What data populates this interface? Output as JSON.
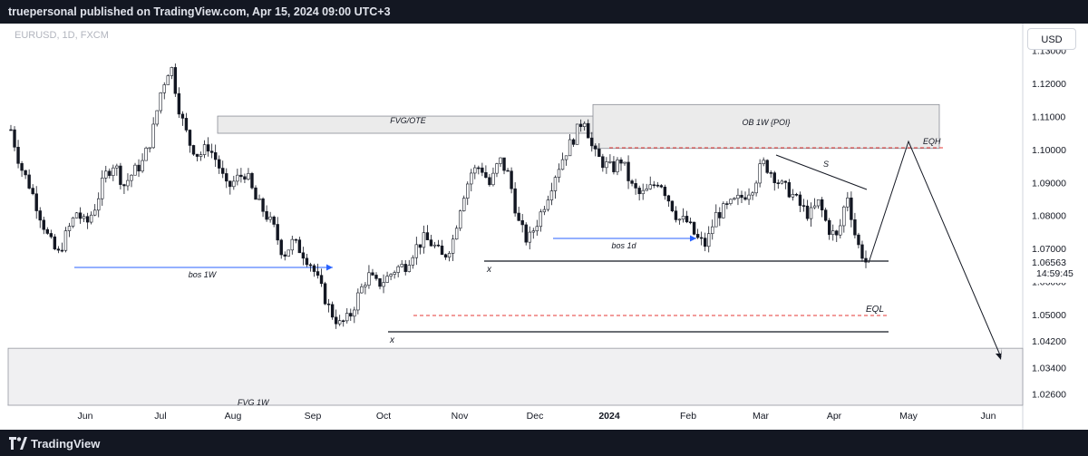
{
  "header": {
    "published_text": "truepersonal published on TradingView.com, Apr 15, 2024 09:00 UTC+3"
  },
  "symbol": {
    "label": "EURUSD, 1D, FXCM"
  },
  "currency_button": {
    "label": "USD"
  },
  "footer": {
    "logo_text": "TradingView"
  },
  "colors": {
    "background": "#ffffff",
    "frame": "#131722",
    "candle_up": "#1e2a20",
    "candle_down": "#000000",
    "box_fill": "#ebebeb",
    "bos_arrow": "#2962ff",
    "dashed_level": "#e53935",
    "last_price_bg": "#ffffff"
  },
  "chart_data": {
    "type": "candlestick",
    "title": "EURUSD, 1D, FXCM",
    "xlabel": "",
    "ylabel": "",
    "x_ticks": [
      "Jun",
      "Jul",
      "Aug",
      "Sep",
      "Oct",
      "Nov",
      "Dec",
      "2024",
      "Feb",
      "Mar",
      "Apr",
      "May",
      "Jun"
    ],
    "y_ticks": [
      "1.13000",
      "1.12000",
      "1.11000",
      "1.10000",
      "1.09000",
      "1.08000",
      "1.07000",
      "1.06000",
      "1.05000",
      "1.04200",
      "1.03400",
      "1.02600"
    ],
    "ylim": [
      1.023,
      1.137
    ],
    "last_price": {
      "value": "1.06563",
      "countdown": "14:59:45"
    },
    "series": [
      {
        "name": "EURUSD",
        "path_closes": [
          1.106,
          1.095,
          1.089,
          1.081,
          1.073,
          1.068,
          1.075,
          1.081,
          1.077,
          1.083,
          1.092,
          1.096,
          1.089,
          1.093,
          1.096,
          1.104,
          1.118,
          1.126,
          1.111,
          1.102,
          1.098,
          1.101,
          1.096,
          1.088,
          1.091,
          1.093,
          1.085,
          1.081,
          1.076,
          1.068,
          1.072,
          1.069,
          1.065,
          1.058,
          1.051,
          1.047,
          1.049,
          1.056,
          1.062,
          1.059,
          1.061,
          1.064,
          1.065,
          1.07,
          1.073,
          1.071,
          1.067,
          1.072,
          1.085,
          1.093,
          1.095,
          1.089,
          1.097,
          1.092,
          1.078,
          1.072,
          1.078,
          1.085,
          1.093,
          1.099,
          1.104,
          1.11,
          1.099,
          1.096,
          1.094,
          1.097,
          1.089,
          1.086,
          1.088,
          1.091,
          1.085,
          1.079,
          1.078,
          1.073,
          1.071,
          1.08,
          1.082,
          1.084,
          1.086,
          1.089,
          1.096,
          1.093,
          1.089,
          1.087,
          1.083,
          1.08,
          1.084,
          1.076,
          1.073,
          1.087,
          1.072,
          1.066
        ],
        "close_x_fraction_start": 0.0,
        "close_x_fraction_end": 1.0
      }
    ],
    "annotations": {
      "boxes": [
        {
          "label": "FVG/OTE",
          "x0": "Aug",
          "x1": "Dec",
          "y0": 1.1049,
          "y1": 1.1101
        },
        {
          "label": "OB 1W {POI}",
          "x0": "Dec",
          "x1": "May",
          "y0": 1.1003,
          "y1": 1.1136
        },
        {
          "label": "FVG 1W",
          "x0": "May 2023",
          "x1": "Jun 2024",
          "y0": 1.01,
          "y1": 1.0398
        }
      ],
      "arrows": [
        {
          "label": "bos 1W",
          "from": 1.0638,
          "to": 1.0638
        },
        {
          "label": "bos 1d",
          "from": 1.0732,
          "to": 1.0732
        }
      ],
      "levels": [
        {
          "label": "x",
          "value": 1.0653
        },
        {
          "label": "x",
          "value": 1.0453
        },
        {
          "label": "EQL",
          "value": 1.0494
        },
        {
          "label": "EQH",
          "value": 1.0998
        }
      ],
      "trendline": {
        "label": "S"
      },
      "projection": {
        "points": [
          1.0653,
          1.101,
          1.037
        ]
      }
    }
  }
}
